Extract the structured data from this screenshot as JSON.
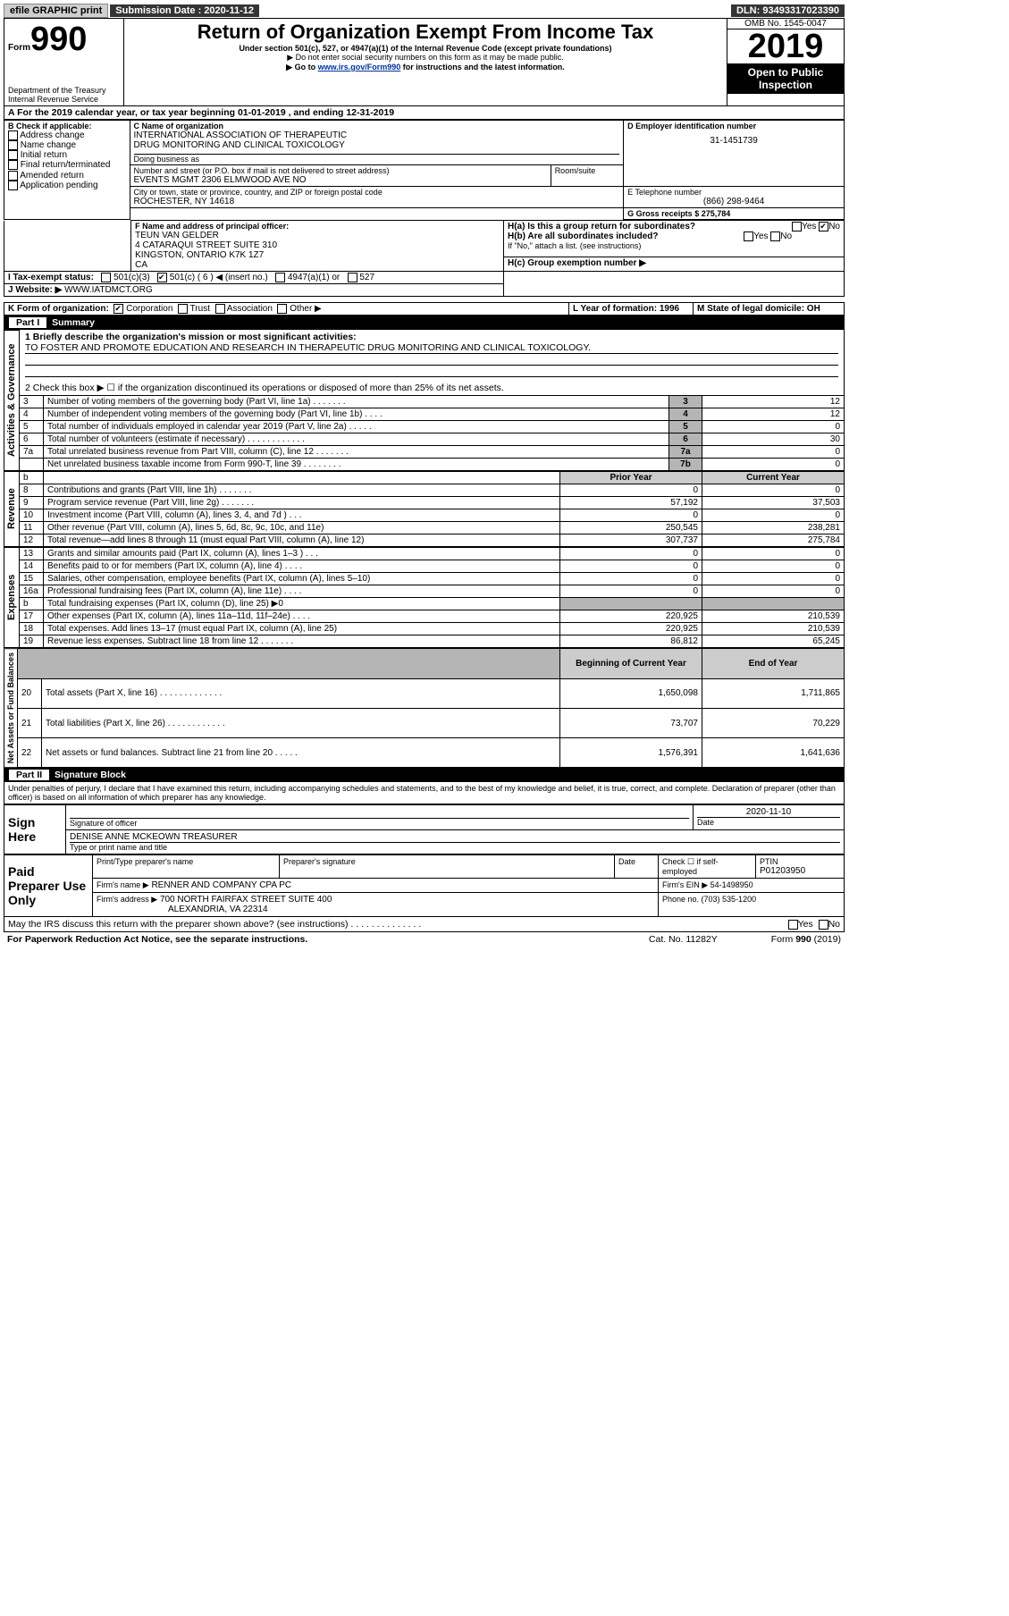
{
  "topbar": {
    "efile": "efile GRAPHIC print",
    "sub_label": "Submission Date : 2020-11-12",
    "dln": "DLN: 93493317023390"
  },
  "header": {
    "form_label": "Form",
    "form_number": "990",
    "dept1": "Department of the Treasury",
    "dept2": "Internal Revenue Service",
    "title": "Return of Organization Exempt From Income Tax",
    "sub1": "Under section 501(c), 527, or 4947(a)(1) of the Internal Revenue Code (except private foundations)",
    "sub2": "▶ Do not enter social security numbers on this form as it may be made public.",
    "sub3a": "▶ Go to ",
    "sub3link": "www.irs.gov/Form990",
    "sub3b": " for instructions and the latest information.",
    "omb": "OMB No. 1545-0047",
    "year": "2019",
    "inspect1": "Open to Public",
    "inspect2": "Inspection"
  },
  "line_a": "A For the 2019 calendar year, or tax year beginning 01-01-2019     , and ending 12-31-2019",
  "block_b": {
    "head": "B Check if applicable:",
    "addr": "Address change",
    "name": "Name change",
    "initial": "Initial return",
    "final": "Final return/terminated",
    "amend": "Amended return",
    "app": "Application pending"
  },
  "block_c": {
    "head": "C Name of organization",
    "org1": "INTERNATIONAL ASSOCIATION OF THERAPEUTIC",
    "org2": "DRUG MONITORING AND CLINICAL TOXICOLOGY",
    "dba": "Doing business as",
    "street_head": "Number and street (or P.O. box if mail is not delivered to street address)",
    "room": "Room/suite",
    "street": "EVENTS MGMT 2306 ELMWOOD AVE NO",
    "city_head": "City or town, state or province, country, and ZIP or foreign postal code",
    "city": "ROCHESTER, NY   14618"
  },
  "block_d": {
    "head": "D Employer identification number",
    "val": "31-1451739"
  },
  "block_e": {
    "head": "E Telephone number",
    "val": "(866) 298-9464"
  },
  "block_g": {
    "text": "G Gross receipts $ 275,784"
  },
  "block_f": {
    "head": "F  Name and address of principal officer:",
    "l1": "TEUN VAN GELDER",
    "l2": "4 CATARAQUI STREET SUITE 310",
    "l3": "KINGSTON, ONTARIO   K7K 1Z7",
    "l4": "CA"
  },
  "block_h": {
    "ha": "H(a)  Is this a group return for subordinates?",
    "hb": "H(b)  Are all subordinates included?",
    "attach": "If \"No,\" attach a list. (see instructions)",
    "hc": "H(c)  Group exemption number ▶",
    "yes": "Yes",
    "no": "No"
  },
  "block_i": {
    "head": "I   Tax-exempt status:",
    "c3": "501(c)(3)",
    "c": "501(c) ( 6 ) ◀ (insert no.)",
    "a4947": "4947(a)(1) or",
    "527": "527"
  },
  "block_j": {
    "head": "J   Website: ▶",
    "val": "WWW.IATDMCT.ORG"
  },
  "block_k": {
    "head": "K Form of organization:",
    "corp": "Corporation",
    "trust": "Trust",
    "assoc": "Association",
    "other": "Other ▶"
  },
  "block_l": "L Year of formation: 1996",
  "block_m": "M State of legal domicile: OH",
  "part1": {
    "title": "Part I",
    "sub": "Summary"
  },
  "summary": {
    "side_ag": "Activities & Governance",
    "side_rev": "Revenue",
    "side_exp": "Expenses",
    "side_net": "Net Assets or Fund Balances",
    "l1a": "1  Briefly describe the organization's mission or most significant activities:",
    "l1b": "TO FOSTER AND PROMOTE EDUCATION AND RESEARCH IN THERAPEUTIC DRUG MONITORING AND CLINICAL TOXICOLOGY.",
    "l2": "2  Check this box ▶ ☐  if the organization discontinued its operations or disposed of more than 25% of its net assets.",
    "rows_top": [
      {
        "n": "3",
        "t": "Number of voting members of the governing body (Part VI, line 1a)   .    .    .    .    .    .    .",
        "box": "3",
        "v": "12"
      },
      {
        "n": "4",
        "t": "Number of independent voting members of the governing body (Part VI, line 1b)  .    .    .    .",
        "box": "4",
        "v": "12"
      },
      {
        "n": "5",
        "t": "Total number of individuals employed in calendar year 2019 (Part V, line 2a)  .    .    .    .    .",
        "box": "5",
        "v": "0"
      },
      {
        "n": "6",
        "t": "Total number of volunteers (estimate if necessary)   .    .    .    .    .    .    .    .    .    .    .    .",
        "box": "6",
        "v": "30"
      },
      {
        "n": "7a",
        "t": "Total unrelated business revenue from Part VIII, column (C), line 12   .    .    .    .    .    .    .",
        "box": "7a",
        "v": "0"
      },
      {
        "n": "",
        "t": "Net unrelated business taxable income from Form 990-T, line 39    .    .    .    .    .    .    .    .",
        "box": "7b",
        "v": "0"
      }
    ],
    "col_prior": "Prior Year",
    "col_current": "Current Year",
    "rows_rev": [
      {
        "n": "8",
        "t": "Contributions and grants (Part VIII, line 1h)    .    .    .    .    .    .    .",
        "p": "0",
        "c": "0"
      },
      {
        "n": "9",
        "t": "Program service revenue (Part VIII, line 2g)   .    .    .    .    .    .    .",
        "p": "57,192",
        "c": "37,503"
      },
      {
        "n": "10",
        "t": "Investment income (Part VIII, column (A), lines 3, 4, and 7d )    .    .    .",
        "p": "0",
        "c": "0"
      },
      {
        "n": "11",
        "t": "Other revenue (Part VIII, column (A), lines 5, 6d, 8c, 9c, 10c, and 11e)",
        "p": "250,545",
        "c": "238,281"
      },
      {
        "n": "12",
        "t": "Total revenue—add lines 8 through 11 (must equal Part VIII, column (A), line 12)",
        "p": "307,737",
        "c": "275,784"
      }
    ],
    "rows_exp": [
      {
        "n": "13",
        "t": "Grants and similar amounts paid (Part IX, column (A), lines 1–3 )  .    .    .",
        "p": "0",
        "c": "0"
      },
      {
        "n": "14",
        "t": "Benefits paid to or for members (Part IX, column (A), line 4)  .    .    .    .",
        "p": "0",
        "c": "0"
      },
      {
        "n": "15",
        "t": "Salaries, other compensation, employee benefits (Part IX, column (A), lines 5–10)",
        "p": "0",
        "c": "0"
      },
      {
        "n": "16a",
        "t": "Professional fundraising fees (Part IX, column (A), line 11e)  .    .    .    .",
        "p": "0",
        "c": "0"
      },
      {
        "n": "b",
        "t": "Total fundraising expenses (Part IX, column (D), line 25) ▶0",
        "p": "",
        "c": "",
        "shade": true
      },
      {
        "n": "17",
        "t": "Other expenses (Part IX, column (A), lines 11a–11d, 11f–24e)   .    .    .    .",
        "p": "220,925",
        "c": "210,539"
      },
      {
        "n": "18",
        "t": "Total expenses. Add lines 13–17 (must equal Part IX, column (A), line 25)",
        "p": "220,925",
        "c": "210,539"
      },
      {
        "n": "19",
        "t": "Revenue less expenses. Subtract line 18 from line 12 .    .    .    .    .    .    .",
        "p": "86,812",
        "c": "65,245"
      }
    ],
    "col_begin": "Beginning of Current Year",
    "col_end": "End of Year",
    "rows_net": [
      {
        "n": "20",
        "t": "Total assets (Part X, line 16)  .    .    .    .    .    .    .    .    .    .    .    .    .",
        "p": "1,650,098",
        "c": "1,711,865"
      },
      {
        "n": "21",
        "t": "Total liabilities (Part X, line 26)  .    .    .    .    .    .    .    .    .    .    .    .",
        "p": "73,707",
        "c": "70,229"
      },
      {
        "n": "22",
        "t": "Net assets or fund balances. Subtract line 21 from line 20  .    .    .    .    .",
        "p": "1,576,391",
        "c": "1,641,636"
      }
    ]
  },
  "part2": {
    "title": "Part II",
    "sub": "Signature Block"
  },
  "sig": {
    "declare": "Under penalties of perjury, I declare that I have examined this return, including accompanying schedules and statements, and to the best of my knowledge and belief, it is true, correct, and complete. Declaration of preparer (other than officer) is based on all information of which preparer has any knowledge.",
    "sign_here": "Sign Here",
    "sig_officer": "Signature of officer",
    "date": "Date",
    "datev": "2020-11-10",
    "nameline": "DENISE ANNE MCKEOWN  TREASURER",
    "nametype": "Type or print name and title",
    "paid": "Paid Preparer Use Only",
    "pp_name_h": "Print/Type preparer's name",
    "pp_sig_h": "Preparer's signature",
    "pp_date_h": "Date",
    "pp_check": "Check ☐ if self-employed",
    "ptin_h": "PTIN",
    "ptin": "P01203950",
    "firm_name_h": "Firm's name      ▶",
    "firm_name": "RENNER AND COMPANY CPA PC",
    "firm_ein": "Firm's EIN ▶ 54-1498950",
    "firm_addr_h": "Firm's address ▶",
    "firm_addr1": "700 NORTH FAIRFAX STREET SUITE 400",
    "firm_addr2": "ALEXANDRIA, VA   22314",
    "firm_phone": "Phone no. (703) 535-1200",
    "discuss": "May the IRS discuss this return with the preparer shown above? (see instructions)   .    .    .    .    .    .    .    .    .    .    .    .    .    .",
    "yes": "Yes",
    "no": "No"
  },
  "footer": {
    "left": "For Paperwork Reduction Act Notice, see the separate instructions.",
    "mid": "Cat. No. 11282Y",
    "right": "Form 990 (2019)"
  }
}
